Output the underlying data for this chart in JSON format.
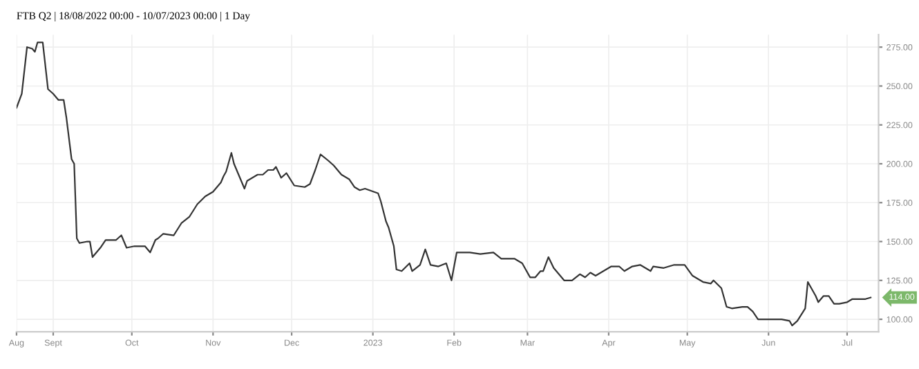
{
  "chart_data": {
    "type": "line",
    "title": "FTB Q2 | 18/08/2022 00:00 - 10/07/2023 00:00 | 1 Day",
    "x": [
      "2022-08-18",
      "2022-08-20",
      "2022-08-22",
      "2022-08-24",
      "2022-08-25",
      "2022-08-26",
      "2022-08-28",
      "2022-08-30",
      "2022-09-01",
      "2022-09-03",
      "2022-09-05",
      "2022-09-06",
      "2022-09-08",
      "2022-09-09",
      "2022-09-10",
      "2022-09-11",
      "2022-09-14",
      "2022-09-15",
      "2022-09-16",
      "2022-09-19",
      "2022-09-21",
      "2022-09-25",
      "2022-09-27",
      "2022-09-29",
      "2022-10-02",
      "2022-10-06",
      "2022-10-08",
      "2022-10-10",
      "2022-10-11",
      "2022-10-13",
      "2022-10-17",
      "2022-10-20",
      "2022-10-23",
      "2022-10-26",
      "2022-10-29",
      "2022-11-01",
      "2022-11-04",
      "2022-11-05",
      "2022-11-06",
      "2022-11-08",
      "2022-11-09",
      "2022-11-11",
      "2022-11-13",
      "2022-11-14",
      "2022-11-18",
      "2022-11-20",
      "2022-11-22",
      "2022-11-24",
      "2022-11-25",
      "2022-11-27",
      "2022-11-29",
      "2022-12-02",
      "2022-12-06",
      "2022-12-08",
      "2022-12-10",
      "2022-12-12",
      "2022-12-15",
      "2022-12-17",
      "2022-12-20",
      "2022-12-23",
      "2022-12-25",
      "2022-12-27",
      "2022-12-29",
      "2023-01-03",
      "2023-01-04",
      "2023-01-06",
      "2023-01-07",
      "2023-01-09",
      "2023-01-10",
      "2023-01-12",
      "2023-01-15",
      "2023-01-16",
      "2023-01-19",
      "2023-01-21",
      "2023-01-23",
      "2023-01-26",
      "2023-01-29",
      "2023-01-31",
      "2023-02-02",
      "2023-02-05",
      "2023-02-07",
      "2023-02-11",
      "2023-02-16",
      "2023-02-19",
      "2023-02-24",
      "2023-02-27",
      "2023-03-02",
      "2023-03-04",
      "2023-03-06",
      "2023-03-07",
      "2023-03-09",
      "2023-03-11",
      "2023-03-13",
      "2023-03-15",
      "2023-03-18",
      "2023-03-21",
      "2023-03-23",
      "2023-03-25",
      "2023-03-27",
      "2023-03-29",
      "2023-04-02",
      "2023-04-05",
      "2023-04-07",
      "2023-04-10",
      "2023-04-13",
      "2023-04-17",
      "2023-04-18",
      "2023-04-22",
      "2023-04-26",
      "2023-04-30",
      "2023-05-03",
      "2023-05-07",
      "2023-05-10",
      "2023-05-11",
      "2023-05-14",
      "2023-05-16",
      "2023-05-18",
      "2023-05-22",
      "2023-05-24",
      "2023-05-26",
      "2023-05-28",
      "2023-05-30",
      "2023-06-02",
      "2023-06-06",
      "2023-06-09",
      "2023-06-10",
      "2023-06-12",
      "2023-06-15",
      "2023-06-16",
      "2023-06-19",
      "2023-06-20",
      "2023-06-22",
      "2023-06-24",
      "2023-06-26",
      "2023-06-28",
      "2023-07-01",
      "2023-07-03",
      "2023-07-06",
      "2023-07-08",
      "2023-07-10"
    ],
    "series": [
      {
        "color": "#333333",
        "values": [
          236,
          245,
          275,
          274,
          272,
          278,
          278,
          248,
          245,
          241,
          241,
          230,
          203,
          200,
          152,
          149,
          150,
          150,
          140,
          146,
          151,
          151,
          154,
          146,
          147,
          147,
          143,
          151,
          152,
          155,
          154,
          162,
          166,
          174,
          179,
          182,
          188,
          192,
          195,
          207,
          200,
          192,
          184,
          189,
          193,
          193,
          196,
          196,
          198,
          191,
          194,
          186,
          185,
          187,
          196,
          206,
          202,
          199,
          193,
          190,
          185,
          183,
          184,
          181,
          176,
          163,
          159,
          147,
          132,
          131,
          136,
          131,
          135,
          145,
          135,
          134,
          136,
          125,
          143,
          143,
          143,
          142,
          143,
          139,
          139,
          136,
          127,
          127,
          131,
          131,
          140,
          133,
          129,
          125,
          125,
          129,
          127,
          130,
          128,
          130,
          134,
          134,
          131,
          134,
          135,
          131,
          134,
          133,
          135,
          135,
          128,
          124,
          123,
          125,
          120,
          108,
          107,
          108,
          108,
          105,
          100,
          100,
          100,
          100,
          99,
          96,
          99,
          107,
          124,
          115,
          111,
          115,
          115,
          110,
          110,
          111,
          113,
          113,
          113,
          114
        ]
      }
    ],
    "xlim": [
      "2022-08-18",
      "2023-07-13"
    ],
    "xticks": [
      {
        "value": "2022-08-18",
        "label": "Aug"
      },
      {
        "value": "2022-09-01",
        "label": "Sept"
      },
      {
        "value": "2022-10-01",
        "label": "Oct"
      },
      {
        "value": "2022-11-01",
        "label": "Nov"
      },
      {
        "value": "2022-12-01",
        "label": "Dec"
      },
      {
        "value": "2023-01-01",
        "label": "2023"
      },
      {
        "value": "2023-02-01",
        "label": "Feb"
      },
      {
        "value": "2023-03-01",
        "label": "Mar"
      },
      {
        "value": "2023-04-01",
        "label": "Apr"
      },
      {
        "value": "2023-05-01",
        "label": "May"
      },
      {
        "value": "2023-06-01",
        "label": "Jun"
      },
      {
        "value": "2023-07-01",
        "label": "Jul"
      }
    ],
    "ylim": [
      92,
      283
    ],
    "yticks": [
      {
        "value": 100,
        "label": "100.00"
      },
      {
        "value": 125,
        "label": "125.00"
      },
      {
        "value": 150,
        "label": "150.00"
      },
      {
        "value": 175,
        "label": "175.00"
      },
      {
        "value": 200,
        "label": "200.00"
      },
      {
        "value": 225,
        "label": "225.00"
      },
      {
        "value": 250,
        "label": "250.00"
      },
      {
        "value": 275,
        "label": "275.00"
      }
    ],
    "annotations": [
      {
        "text": "114.00",
        "x": "2023-07-10",
        "y": 114
      }
    ],
    "grid": true,
    "line_style": "solid",
    "marker": "none"
  }
}
